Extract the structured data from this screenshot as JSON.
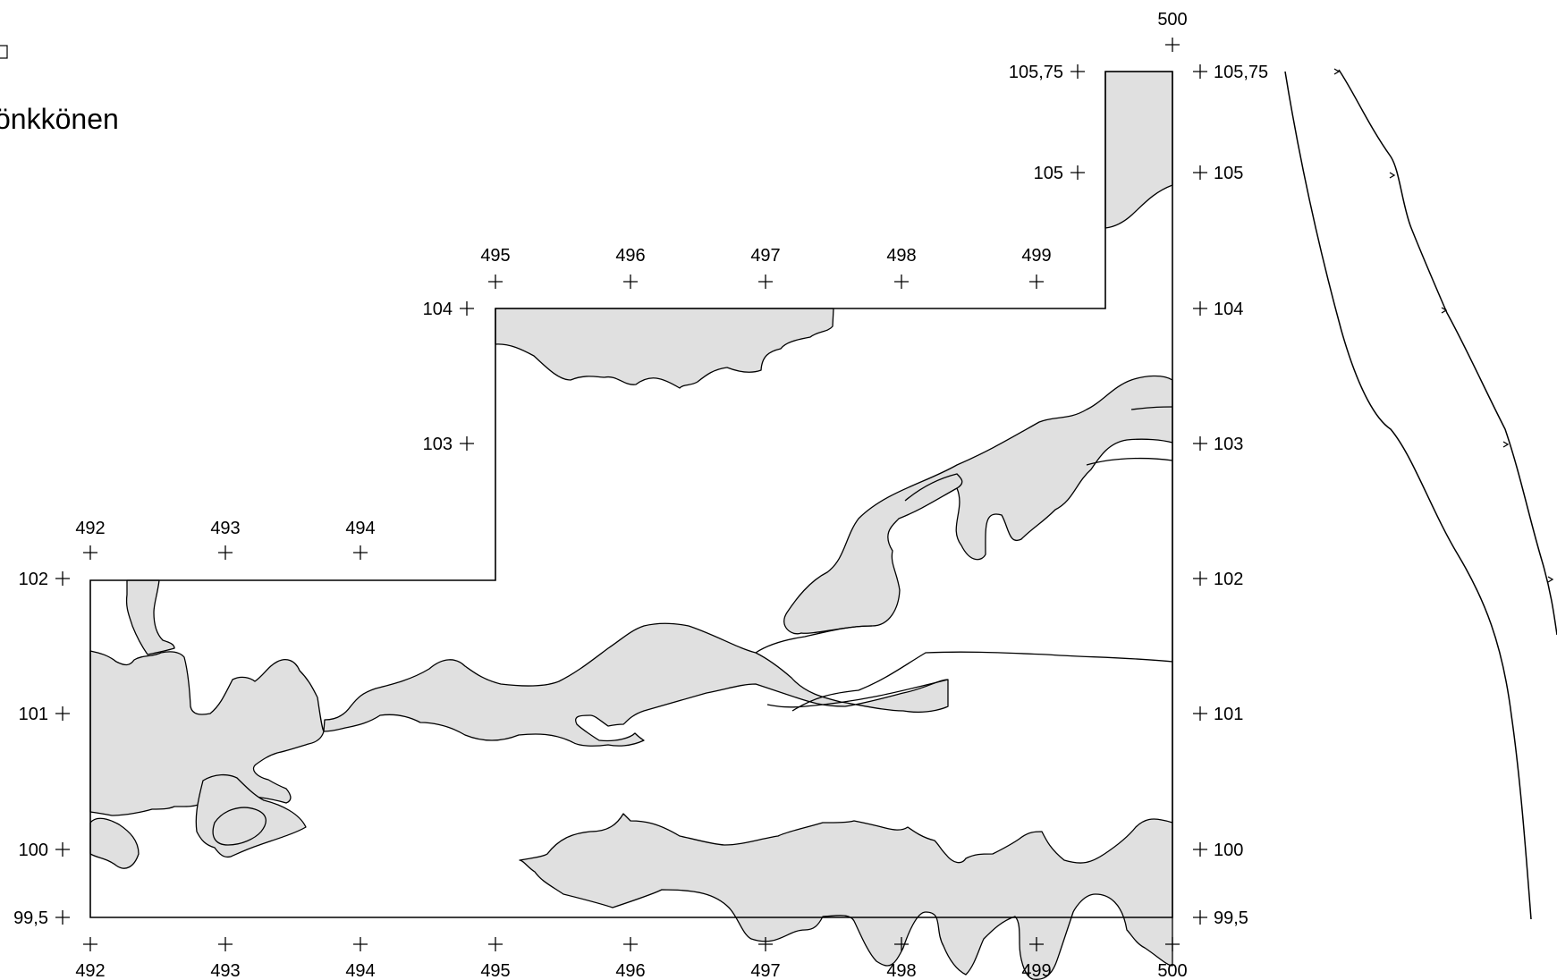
{
  "header": {
    "title": "önkkönen"
  },
  "grid": {
    "x_labels": [
      "492",
      "493",
      "494",
      "495",
      "496",
      "497",
      "498",
      "499",
      "500"
    ],
    "y_labels_left": [
      "99,5",
      "100",
      "101",
      "102",
      "103",
      "104",
      "105",
      "105,75"
    ],
    "y_labels_right": [
      "99,5",
      "100",
      "101",
      "102",
      "103",
      "104",
      "105",
      "105,75"
    ]
  },
  "colors": {
    "fill": "#e0e0e0",
    "stroke": "#000000",
    "background": "#ffffff"
  }
}
